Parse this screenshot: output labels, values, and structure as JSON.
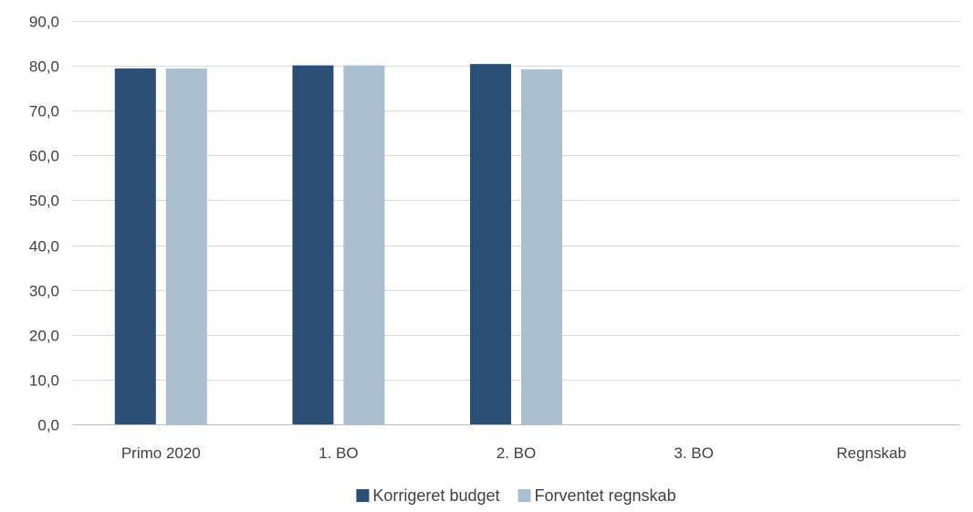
{
  "chart_data": {
    "type": "bar",
    "title": "",
    "xlabel": "",
    "ylabel": "",
    "categories": [
      "Primo 2020",
      "1. BO",
      "2. BO",
      "3. BO",
      "Regnskab"
    ],
    "series": [
      {
        "name": "Korrigeret budget",
        "color": "#2a4e74",
        "values": [
          79.4,
          80.1,
          80.4,
          null,
          null
        ]
      },
      {
        "name": "Forventet regnskab",
        "color": "#a9bfd1",
        "values": [
          79.4,
          80.1,
          79.2,
          null,
          null
        ]
      }
    ],
    "ylim": [
      0,
      90
    ],
    "yticks": [
      0,
      10,
      20,
      30,
      40,
      50,
      60,
      70,
      80,
      90
    ],
    "ytick_labels": [
      "0,0",
      "10,0",
      "20,0",
      "30,0",
      "40,0",
      "50,0",
      "60,0",
      "70,0",
      "80,0",
      "90,0"
    ],
    "grid": true,
    "legend_position": "bottom-center",
    "colors": {
      "gridline": "#d9d9d9",
      "axis_text": "#404040"
    }
  }
}
